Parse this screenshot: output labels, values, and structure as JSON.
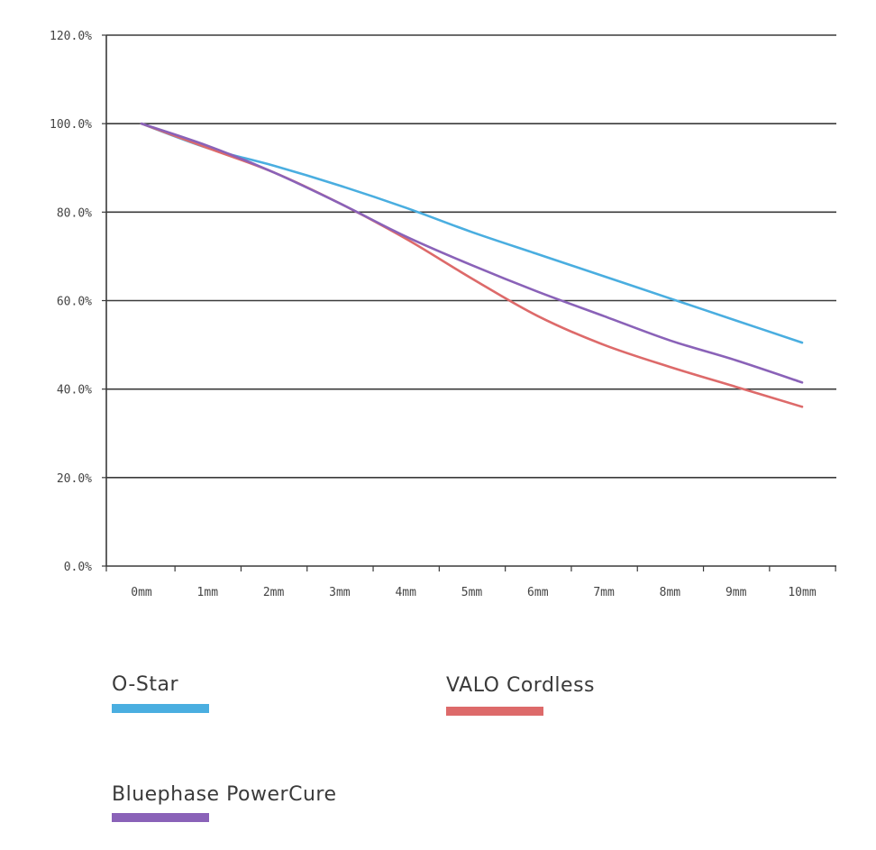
{
  "chart_data": {
    "type": "line",
    "title": "",
    "xlabel": "",
    "ylabel": "",
    "categories": [
      "0mm",
      "1mm",
      "2mm",
      "3mm",
      "4mm",
      "5mm",
      "6mm",
      "7mm",
      "8mm",
      "9mm",
      "10mm"
    ],
    "y_tick_labels": [
      "0.0%",
      "20.0%",
      "40.0%",
      "60.0%",
      "80.0%",
      "100.0%",
      "120.0%"
    ],
    "ylim": [
      0,
      120
    ],
    "grid": true,
    "legend_position": "bottom",
    "series": [
      {
        "name": "O-Star",
        "color": "#4aaee0",
        "values": [
          100,
          94.5,
          90.5,
          86,
          81,
          75.5,
          70.5,
          65.5,
          60.5,
          55.5,
          50.5
        ]
      },
      {
        "name": "VALO Cordless",
        "color": "#dd6a6a",
        "values": [
          100,
          94.5,
          89,
          82,
          74,
          65,
          56.5,
          50,
          45,
          40.5,
          36
        ]
      },
      {
        "name": "Bluephase PowerCure",
        "color": "#8a62b8",
        "values": [
          100,
          95,
          89,
          82,
          74.5,
          68,
          62,
          56.5,
          51,
          46.5,
          41.5
        ]
      }
    ]
  }
}
